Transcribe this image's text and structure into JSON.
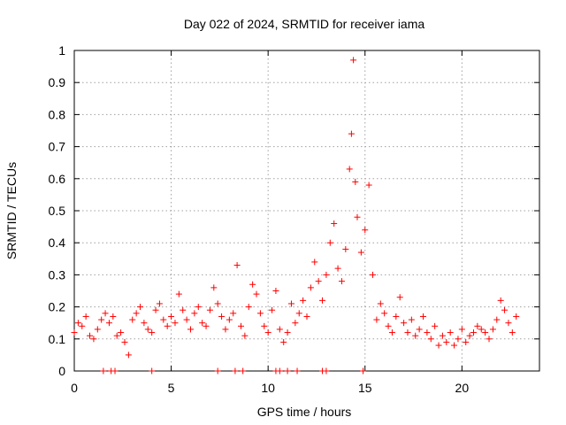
{
  "chart_data": {
    "type": "scatter",
    "title": "Day 022 of 2024, SRMTID for receiver iama",
    "xlabel": "GPS time / hours",
    "ylabel": "SRMTID / TECUs",
    "xlim": [
      0,
      24
    ],
    "ylim": [
      0,
      1
    ],
    "xticks": [
      0,
      5,
      10,
      15,
      20
    ],
    "yticks": [
      0,
      0.1,
      0.2,
      0.3,
      0.4,
      0.5,
      0.6,
      0.7,
      0.8,
      0.9,
      1
    ],
    "xtick_labels": [
      "0",
      "5",
      "10",
      "15",
      "20"
    ],
    "ytick_labels": [
      "0",
      "0.1",
      "0.2",
      "0.3",
      "0.4",
      "0.5",
      "0.6",
      "0.7",
      "0.8",
      "0.9",
      "1"
    ],
    "grid": true,
    "marker": "+",
    "color": "#ff0000",
    "series": [
      {
        "name": "SRMTID",
        "x": [
          0.0,
          0.2,
          0.4,
          0.6,
          0.8,
          1.0,
          1.2,
          1.4,
          1.6,
          1.8,
          2.0,
          2.2,
          2.4,
          2.6,
          2.8,
          3.0,
          3.2,
          3.4,
          3.6,
          3.8,
          4.0,
          4.2,
          4.4,
          4.6,
          4.8,
          5.0,
          5.2,
          5.4,
          5.6,
          5.8,
          6.0,
          6.2,
          6.4,
          6.6,
          6.8,
          7.0,
          7.2,
          7.4,
          7.6,
          7.8,
          8.0,
          8.2,
          8.4,
          8.6,
          8.8,
          9.0,
          9.2,
          9.4,
          9.6,
          9.8,
          10.0,
          10.2,
          10.4,
          10.6,
          10.8,
          11.0,
          11.2,
          11.4,
          11.6,
          11.8,
          12.0,
          12.2,
          12.4,
          12.6,
          12.8,
          13.0,
          13.2,
          13.4,
          13.6,
          13.8,
          14.0,
          14.2,
          14.3,
          14.4,
          14.5,
          14.6,
          14.8,
          15.0,
          15.2,
          15.4,
          15.6,
          15.8,
          16.0,
          16.2,
          16.4,
          16.6,
          16.8,
          17.0,
          17.2,
          17.4,
          17.6,
          17.8,
          18.0,
          18.2,
          18.4,
          18.6,
          18.8,
          19.0,
          19.2,
          19.4,
          19.6,
          19.8,
          20.0,
          20.2,
          20.4,
          20.6,
          20.8,
          21.0,
          21.2,
          21.4,
          21.6,
          21.8,
          22.0,
          22.2,
          22.4,
          22.6,
          22.8,
          1.5,
          1.9,
          2.1,
          4.0,
          7.4,
          8.3,
          8.7,
          10.4,
          10.6,
          11.0,
          11.5,
          12.8,
          13.0,
          14.9
        ],
        "y": [
          0.12,
          0.15,
          0.14,
          0.17,
          0.11,
          0.1,
          0.13,
          0.16,
          0.18,
          0.15,
          0.17,
          0.11,
          0.12,
          0.09,
          0.05,
          0.16,
          0.18,
          0.2,
          0.15,
          0.13,
          0.12,
          0.19,
          0.21,
          0.16,
          0.14,
          0.17,
          0.15,
          0.24,
          0.19,
          0.16,
          0.13,
          0.18,
          0.2,
          0.15,
          0.14,
          0.19,
          0.26,
          0.21,
          0.17,
          0.13,
          0.16,
          0.18,
          0.33,
          0.14,
          0.11,
          0.2,
          0.27,
          0.24,
          0.18,
          0.14,
          0.12,
          0.19,
          0.25,
          0.13,
          0.09,
          0.12,
          0.21,
          0.15,
          0.18,
          0.22,
          0.17,
          0.26,
          0.34,
          0.28,
          0.22,
          0.3,
          0.4,
          0.46,
          0.32,
          0.28,
          0.38,
          0.63,
          0.74,
          0.97,
          0.59,
          0.48,
          0.37,
          0.44,
          0.58,
          0.3,
          0.16,
          0.21,
          0.18,
          0.14,
          0.12,
          0.17,
          0.23,
          0.15,
          0.12,
          0.16,
          0.11,
          0.13,
          0.17,
          0.12,
          0.1,
          0.14,
          0.08,
          0.11,
          0.09,
          0.12,
          0.08,
          0.1,
          0.13,
          0.09,
          0.11,
          0.12,
          0.14,
          0.13,
          0.12,
          0.1,
          0.13,
          0.16,
          0.22,
          0.19,
          0.15,
          0.12,
          0.17,
          0,
          0,
          0,
          0,
          0,
          0,
          0,
          0,
          0,
          0,
          0,
          0,
          0,
          0
        ]
      }
    ]
  }
}
